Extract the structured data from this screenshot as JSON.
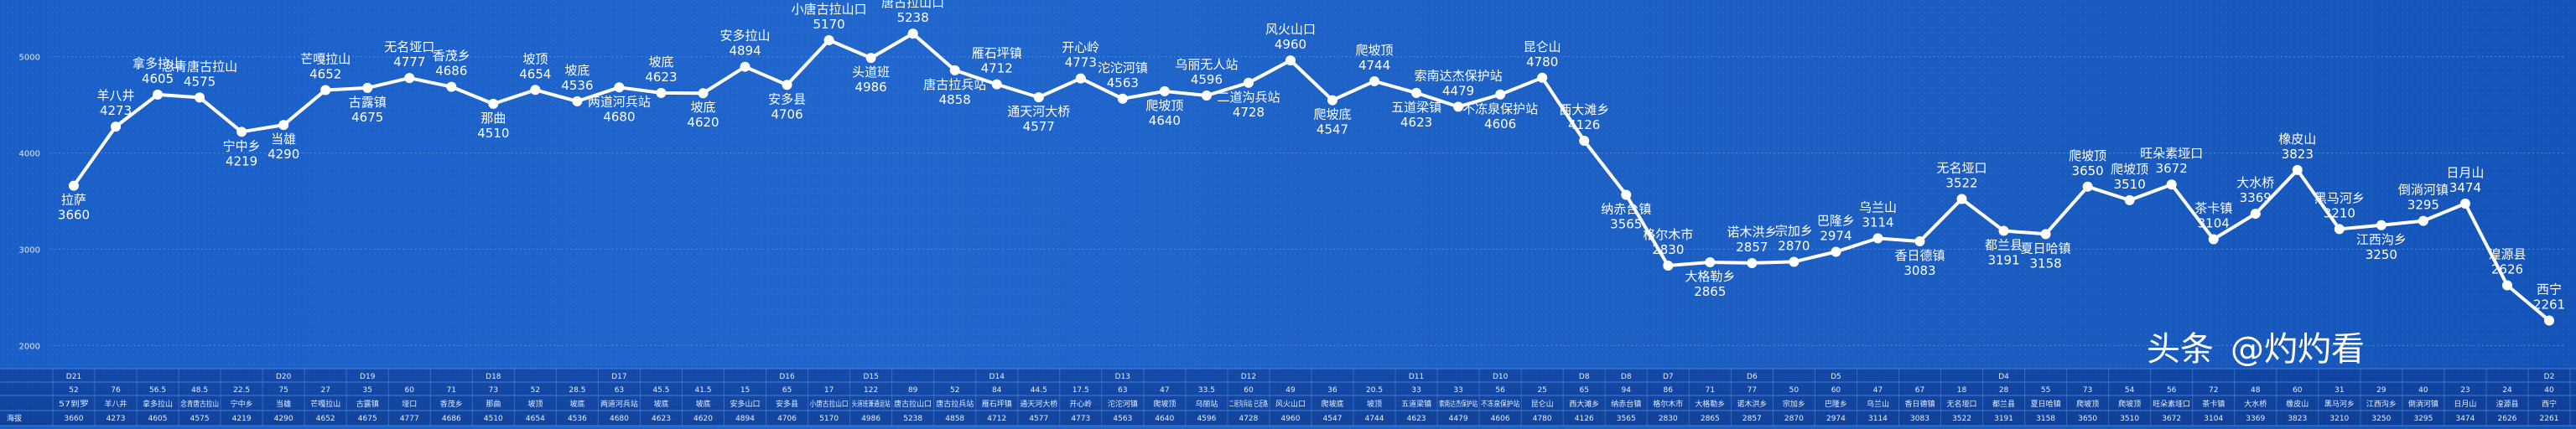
{
  "chart_data": {
    "type": "line",
    "ylim": [
      1500,
      5500
    ],
    "yticks": [
      2000,
      3000,
      4000,
      5000
    ],
    "grid": true,
    "series": [
      {
        "name": "",
        "color": "#ffffff",
        "values": [
          3660,
          4273,
          4605,
          4575,
          4219,
          4290,
          4652,
          4675,
          4777,
          4686,
          4510,
          4654,
          4536,
          4680,
          4623,
          4620,
          4894,
          4706,
          5170,
          4986,
          5238,
          4858,
          4712,
          4577,
          4773,
          4563,
          4640,
          4596,
          4728,
          4960,
          4547,
          4744,
          4623,
          4479,
          4606,
          4780,
          4126,
          3565,
          2830,
          2865,
          2857,
          2870,
          2974,
          3114,
          3083,
          3522,
          3191,
          3158,
          3650,
          3510,
          3672,
          3104,
          3369,
          3823,
          3210,
          3250,
          3295,
          3474,
          2626,
          2261
        ]
      }
    ],
    "point_labels": [
      "拉萨",
      "羊八井",
      "拿多拉山",
      "念青唐古拉山",
      "宁中乡",
      "当雄",
      "芒嘎拉山",
      "古露镇",
      "无名垭口",
      "香茂乡",
      "那曲",
      "坡顶",
      "坡底",
      "两道河兵站",
      "坡底",
      "坡底",
      "安多拉山",
      "安多县",
      "小唐古拉山口",
      "头道班",
      "唐古拉山口",
      "唐古拉兵站",
      "雁石坪镇",
      "通天河大桥",
      "开心岭",
      "沱沱河镇",
      "爬坡顶",
      "乌丽无人站",
      "二道沟兵站",
      "风火山口",
      "爬坡底",
      "爬坡顶",
      "五道梁镇",
      "索南达杰保护站",
      "不冻泉保护站",
      "昆仑山",
      "西大滩乡",
      "纳赤台镇",
      "格尔木市",
      "大格勒乡",
      "诺木洪乡",
      "宗加乡",
      "巴隆乡",
      "乌兰山",
      "香日德镇",
      "无名垭口",
      "都兰县",
      "夏日哈镇",
      "爬坡顶",
      "爬坡顶",
      "旺朵素垭口",
      "茶卡镇",
      "大水桥",
      "橡皮山",
      "黑马河乡",
      "江西沟乡",
      "倒淌河镇",
      "日月山",
      "湟源县",
      "西宁"
    ],
    "label_position": [
      "below",
      "above",
      "above",
      "above",
      "below",
      "below",
      "above",
      "below",
      "above",
      "above",
      "below",
      "above",
      "above",
      "below",
      "above",
      "below",
      "above",
      "below",
      "above",
      "below",
      "above",
      "below",
      "above",
      "below",
      "above",
      "above",
      "below",
      "above",
      "below",
      "above",
      "below",
      "above",
      "below",
      "above",
      "below",
      "above",
      "above",
      "below",
      "above",
      "below",
      "above",
      "above",
      "above",
      "above",
      "below",
      "above",
      "below",
      "below",
      "above",
      "above",
      "above",
      "above",
      "above",
      "above",
      "above",
      "below",
      "above",
      "above",
      "above",
      "above"
    ],
    "table": {
      "days": [
        "D21",
        "",
        "",
        "",
        "",
        "D20",
        "",
        "D19",
        "",
        "",
        "D18",
        "",
        "",
        "D17",
        "",
        "",
        "",
        "D16",
        "",
        "D15",
        "",
        "",
        "D14",
        "",
        "",
        "D13",
        "",
        "",
        "D12",
        "",
        "",
        "",
        "D11",
        "",
        "D10",
        "",
        "D8",
        "D8",
        "D7",
        "",
        "D6",
        "",
        "D5",
        "",
        "",
        "",
        "D4",
        "",
        "",
        "",
        "",
        "",
        "",
        "",
        "",
        "",
        "",
        "",
        "",
        "D2"
      ],
      "distances": [
        "52",
        "76",
        "56.5",
        "48.5",
        "22.5",
        "75",
        "27",
        "35",
        "60",
        "71",
        "73",
        "52",
        "28.5",
        "63",
        "45.5",
        "41.5",
        "15",
        "65",
        "17",
        "122",
        "89",
        "52",
        "84",
        "44.5",
        "17.5",
        "63",
        "47",
        "33.5",
        "60",
        "49",
        "36",
        "20.5",
        "33",
        "33",
        "56",
        "25",
        "65",
        "94",
        "86",
        "71",
        "77",
        "50",
        "60",
        "47",
        "67",
        "18",
        "28",
        "55",
        "73",
        "54",
        "56",
        "72",
        "48",
        "60",
        "31",
        "29",
        "40",
        "23",
        "24",
        "40"
      ],
      "places": [
        "57到罗",
        "羊八井",
        "拿多拉山",
        "念青唐古拉山",
        "宁中乡",
        "当雄",
        "芒嘎拉山",
        "古露镇",
        "垭口",
        "香茂乡",
        "那曲",
        "坡顶",
        "坡底",
        "两道河兵站",
        "坡底",
        "坡底",
        "安多山口",
        "安多县",
        "小唐古拉山口",
        "头道班兼通运站",
        "唐古拉山口",
        "唐古拉兵站",
        "雁石坪镇",
        "通天河大桥",
        "开心岭",
        "沱沱河镇",
        "爬坡顶",
        "乌丽站",
        "二道沟兵站 已近路",
        "风火山口",
        "爬坡底",
        "坡顶",
        "五道梁镇",
        "索南达杰保护站",
        "不冻泉保护站",
        "昆仑山",
        "西大滩乡",
        "纳赤台镇",
        "格尔木市",
        "大格勒乡",
        "诺木洪乡",
        "宗加乡",
        "巴隆乡",
        "乌兰山",
        "香日德镇",
        "无名垭口",
        "都兰县",
        "夏日哈镇",
        "爬坡顶",
        "爬坡顶",
        "旺朵素垭口",
        "茶卡镇",
        "大水桥",
        "橡皮山",
        "黑马河乡",
        "江西沟乡",
        "倒淌河镇",
        "日月山",
        "湟源县",
        "西宁"
      ],
      "row_label": "海拔"
    }
  },
  "watermark": {
    "brand": "头条",
    "handle": "@灼灼看"
  }
}
